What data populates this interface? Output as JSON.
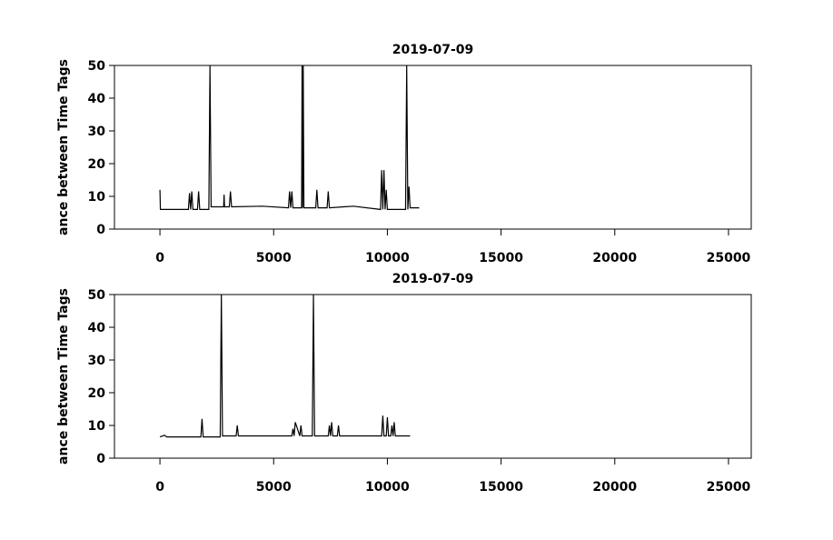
{
  "chart_data": [
    {
      "type": "line",
      "title": "2019-07-09",
      "ylabel": "ance between Time Tags",
      "color": "#000000",
      "x": [
        0,
        20,
        40,
        300,
        1250,
        1300,
        1350,
        1400,
        1450,
        1650,
        1700,
        1750,
        2150,
        2200,
        2250,
        2800,
        2820,
        2840,
        3050,
        3100,
        3150,
        4500,
        5650,
        5700,
        5750,
        5800,
        5850,
        6230,
        6250,
        6270,
        6300,
        6330,
        6850,
        6900,
        6950,
        7350,
        7400,
        7450,
        8500,
        9700,
        9750,
        9800,
        9850,
        9900,
        9950,
        10000,
        10800,
        10850,
        10900,
        10950,
        11000,
        11400
      ],
      "values": [
        12,
        6,
        6,
        6,
        6,
        11,
        6,
        11.5,
        6,
        6,
        11.5,
        6,
        6,
        50,
        6.8,
        6.8,
        10.5,
        6.8,
        6.8,
        11.5,
        6.8,
        7,
        6.5,
        11.5,
        6.5,
        11.5,
        6.5,
        6.5,
        50,
        6.5,
        50,
        6.5,
        6.5,
        12,
        6.5,
        6.5,
        11.5,
        6.5,
        7,
        6,
        18,
        6,
        18,
        6,
        12,
        6,
        6,
        50,
        6,
        13,
        6.5,
        6.5
      ],
      "xlim": [
        -2000,
        26000
      ],
      "xticks": [
        0,
        5000,
        10000,
        15000,
        20000,
        25000
      ],
      "ylim": [
        0,
        50
      ],
      "yticks": [
        0,
        10,
        20,
        30,
        40,
        50
      ]
    },
    {
      "type": "line",
      "title": "2019-07-09",
      "ylabel": "ance between Time Tags",
      "color": "#000000",
      "x": [
        0,
        200,
        300,
        1800,
        1850,
        1900,
        2650,
        2700,
        2750,
        3350,
        3400,
        3450,
        5800,
        5850,
        5900,
        5950,
        6150,
        6200,
        6250,
        6700,
        6750,
        6800,
        7400,
        7450,
        7500,
        7550,
        7600,
        7800,
        7850,
        7900,
        9750,
        9800,
        9850,
        9950,
        10000,
        10050,
        10150,
        10200,
        10250,
        10300,
        10350,
        11000
      ],
      "values": [
        6.5,
        7,
        6.5,
        6.5,
        12,
        6.5,
        6.5,
        50,
        6.8,
        6.8,
        10,
        6.8,
        6.8,
        9,
        6.8,
        11,
        6.8,
        10,
        6.8,
        6.8,
        50,
        6.8,
        6.8,
        10,
        6.8,
        11,
        6.8,
        6.8,
        10,
        6.8,
        6.8,
        13,
        6.8,
        6.8,
        12.5,
        6.8,
        6.8,
        10,
        6.8,
        11,
        6.8,
        6.8
      ],
      "xlim": [
        -2000,
        26000
      ],
      "xticks": [
        0,
        5000,
        10000,
        15000,
        20000,
        25000
      ],
      "ylim": [
        0,
        50
      ],
      "yticks": [
        0,
        10,
        20,
        30,
        40,
        50
      ]
    }
  ]
}
